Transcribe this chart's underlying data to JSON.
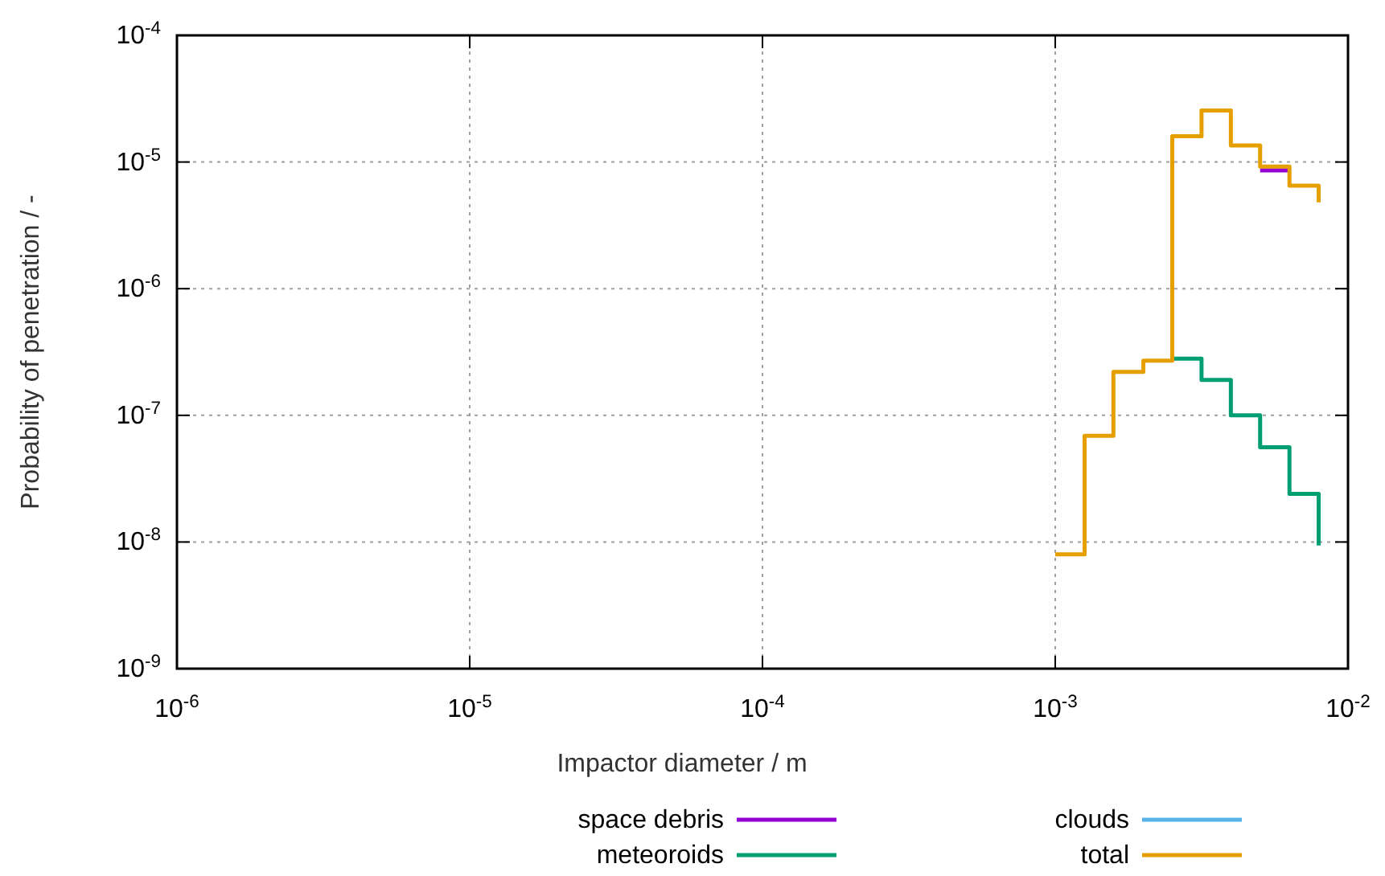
{
  "chart_data": {
    "type": "step",
    "xlabel": "Impactor diameter / m",
    "ylabel": "Probability of penetration / -",
    "log": "xy",
    "grid": true,
    "legend": "bottom",
    "line_style": "solid",
    "marker": "none",
    "xlim": [
      1e-06,
      0.01
    ],
    "ylim": [
      1e-09,
      0.0001
    ],
    "xticks": [
      {
        "value": 1e-06,
        "label": "10$^{-6}$"
      },
      {
        "value": 1e-05,
        "label": "10$^{-5}$"
      },
      {
        "value": 0.0001,
        "label": "10$^{-4}$"
      },
      {
        "value": 0.001,
        "label": "10$^{-3}$"
      },
      {
        "value": 0.01,
        "label": "10$^{-2}$"
      }
    ],
    "yticks": [
      {
        "value": 1e-09,
        "label": "10$^{-9}$"
      },
      {
        "value": 1e-08,
        "label": "10$^{-8}$"
      },
      {
        "value": 1e-07,
        "label": "10$^{-7}$"
      },
      {
        "value": 1e-06,
        "label": "10$^{-6}$"
      },
      {
        "value": 1e-05,
        "label": "10$^{-5}$"
      },
      {
        "value": 0.0001,
        "label": "10$^{-4}$"
      }
    ],
    "series": [
      {
        "name": "space debris",
        "color": "#9400d3",
        "x": [
          0.00501,
          0.00631
        ],
        "values": [
          8.6e-06,
          8.6e-06
        ]
      },
      {
        "name": "meteoroids",
        "color": "#009e73",
        "x": [
          0.00251,
          0.00316,
          0.00398,
          0.00501,
          0.00631,
          0.00794
        ],
        "values": [
          2.8e-07,
          1.9e-07,
          1e-07,
          5.6e-08,
          2.4e-08,
          9.4e-09
        ]
      },
      {
        "name": "clouds",
        "color": "#56b4e9"
      },
      {
        "name": "total",
        "color": "#e69f00",
        "x": [
          0.001,
          0.00126,
          0.00158,
          0.002,
          0.00251,
          0.00316,
          0.00398,
          0.00501,
          0.00631,
          0.00794
        ],
        "values": [
          8e-09,
          6.9e-08,
          2.2e-07,
          2.7e-07,
          1.6e-05,
          2.55e-05,
          1.35e-05,
          9.2e-06,
          6.5e-06,
          4.8e-06
        ]
      }
    ]
  }
}
